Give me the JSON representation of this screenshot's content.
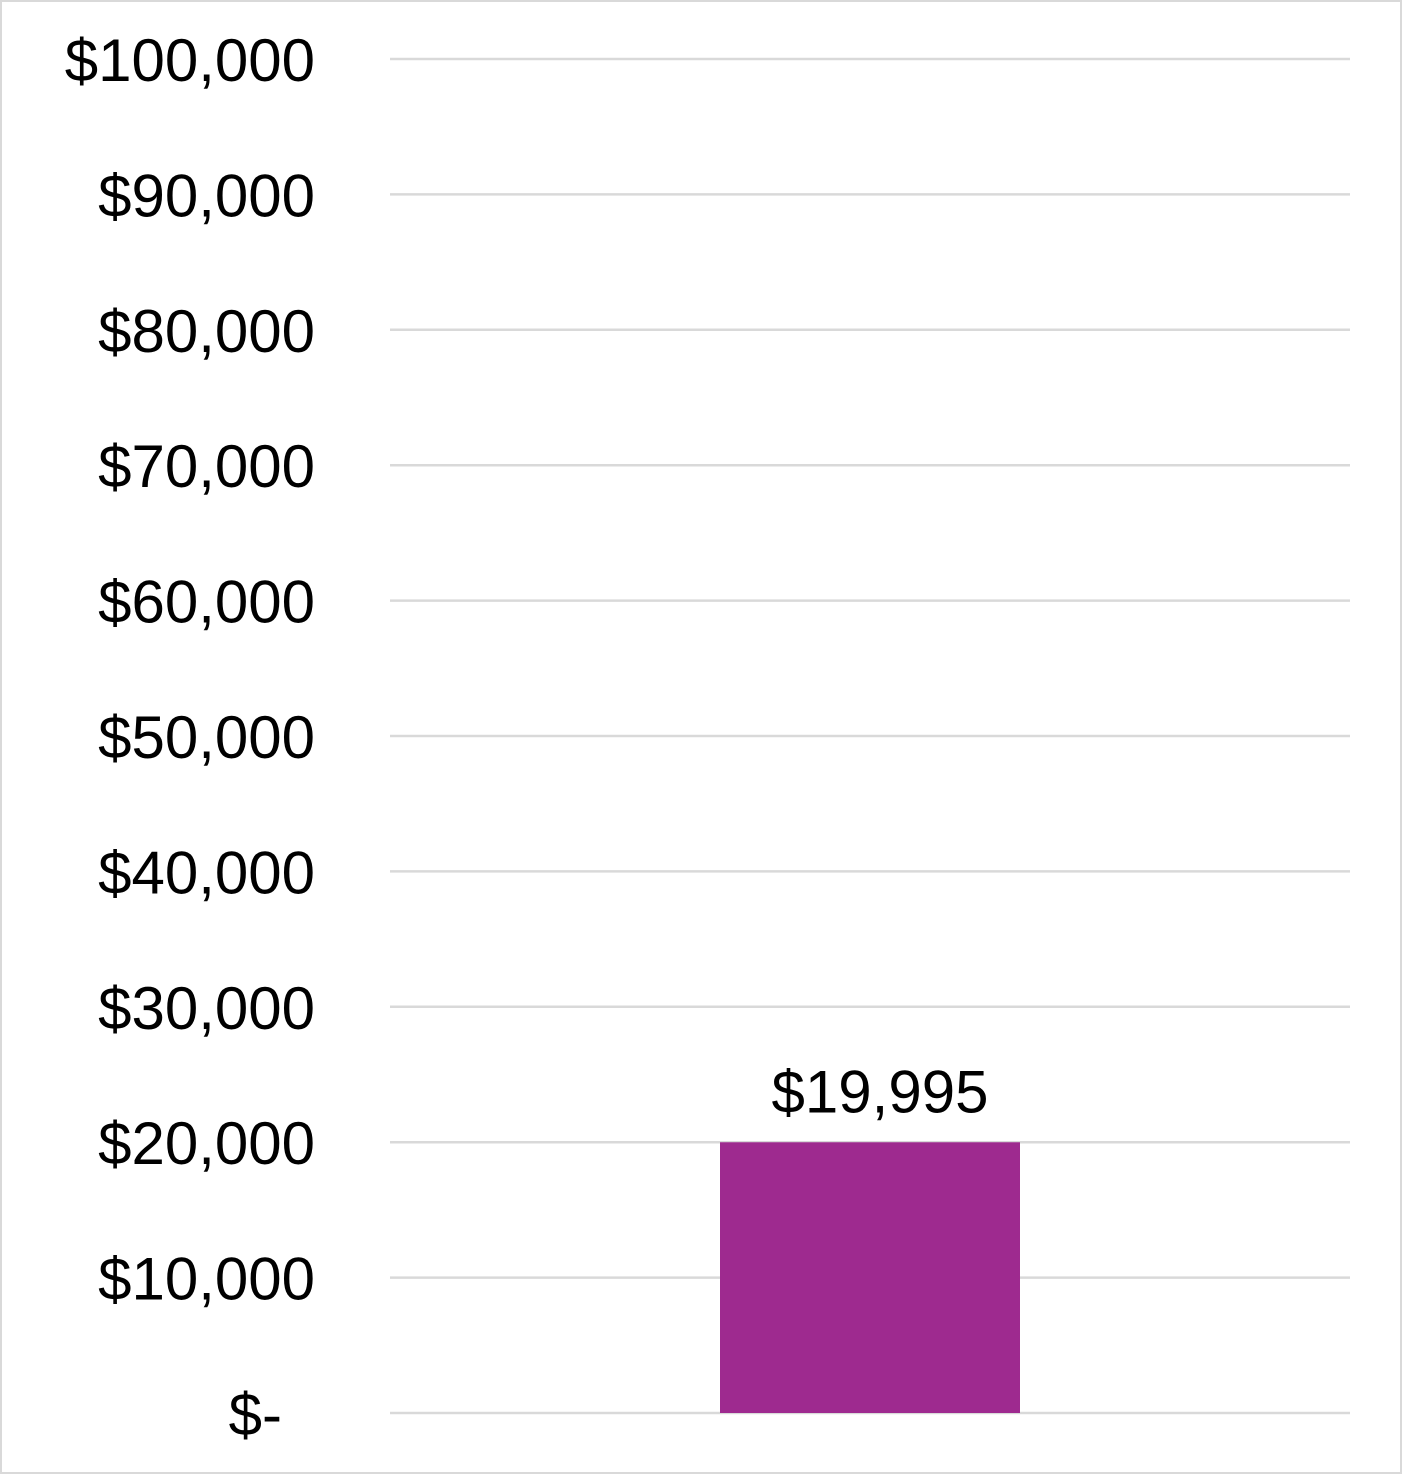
{
  "chart_data": {
    "type": "bar",
    "categories": [
      ""
    ],
    "values": [
      19995
    ],
    "data_labels": [
      "$19,995"
    ],
    "title": "",
    "xlabel": "",
    "ylabel": "",
    "ylim": [
      0,
      100000
    ],
    "y_ticks": [
      0,
      10000,
      20000,
      30000,
      40000,
      50000,
      60000,
      70000,
      80000,
      90000,
      100000
    ],
    "y_tick_labels": [
      "$-",
      "$10,000",
      "$20,000",
      "$30,000",
      "$40,000",
      "$50,000",
      "$60,000",
      "$70,000",
      "$80,000",
      "$90,000",
      "$100,000"
    ],
    "grid": true,
    "legend": "none",
    "bar_color": "#9e2a8f",
    "grid_color": "#d9d9d9"
  }
}
